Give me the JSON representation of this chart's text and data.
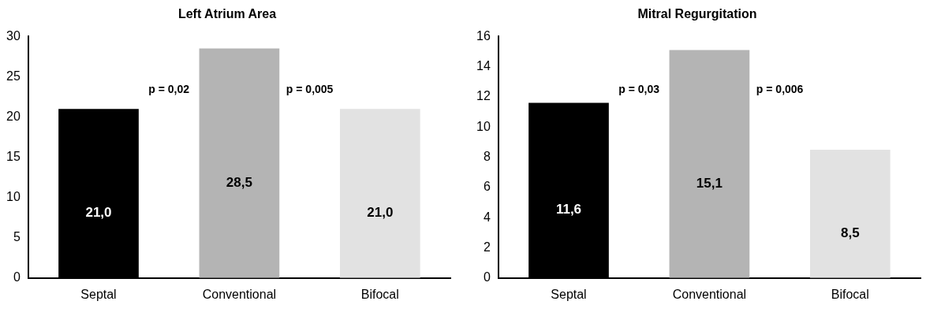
{
  "chart_data": [
    {
      "type": "bar",
      "title": "Left Atrium Area",
      "categories": [
        "Septal",
        "Conventional",
        "Bifocal"
      ],
      "values": [
        21.0,
        28.5,
        21.0
      ],
      "colors": [
        "#000000",
        "#b4b4b4",
        "#e2e2e2"
      ],
      "value_labels": [
        "21,0",
        "28,5",
        "21,0"
      ],
      "ylim": [
        0,
        30
      ],
      "yticks": [
        0,
        5,
        10,
        15,
        20,
        25,
        30
      ],
      "grid": false,
      "legend": false,
      "annotations": [
        "p = 0,02",
        "p = 0,005"
      ]
    },
    {
      "type": "bar",
      "title": "Mitral Regurgitation",
      "categories": [
        "Septal",
        "Conventional",
        "Bifocal"
      ],
      "values": [
        11.6,
        15.1,
        8.5
      ],
      "colors": [
        "#000000",
        "#b4b4b4",
        "#e2e2e2"
      ],
      "value_labels": [
        "11,6",
        "15,1",
        "8,5"
      ],
      "ylim": [
        0,
        16
      ],
      "yticks": [
        0,
        2,
        4,
        6,
        8,
        10,
        12,
        14,
        16
      ],
      "grid": false,
      "legend": false,
      "annotations": [
        "p = 0,03",
        "p = 0,006"
      ]
    }
  ]
}
